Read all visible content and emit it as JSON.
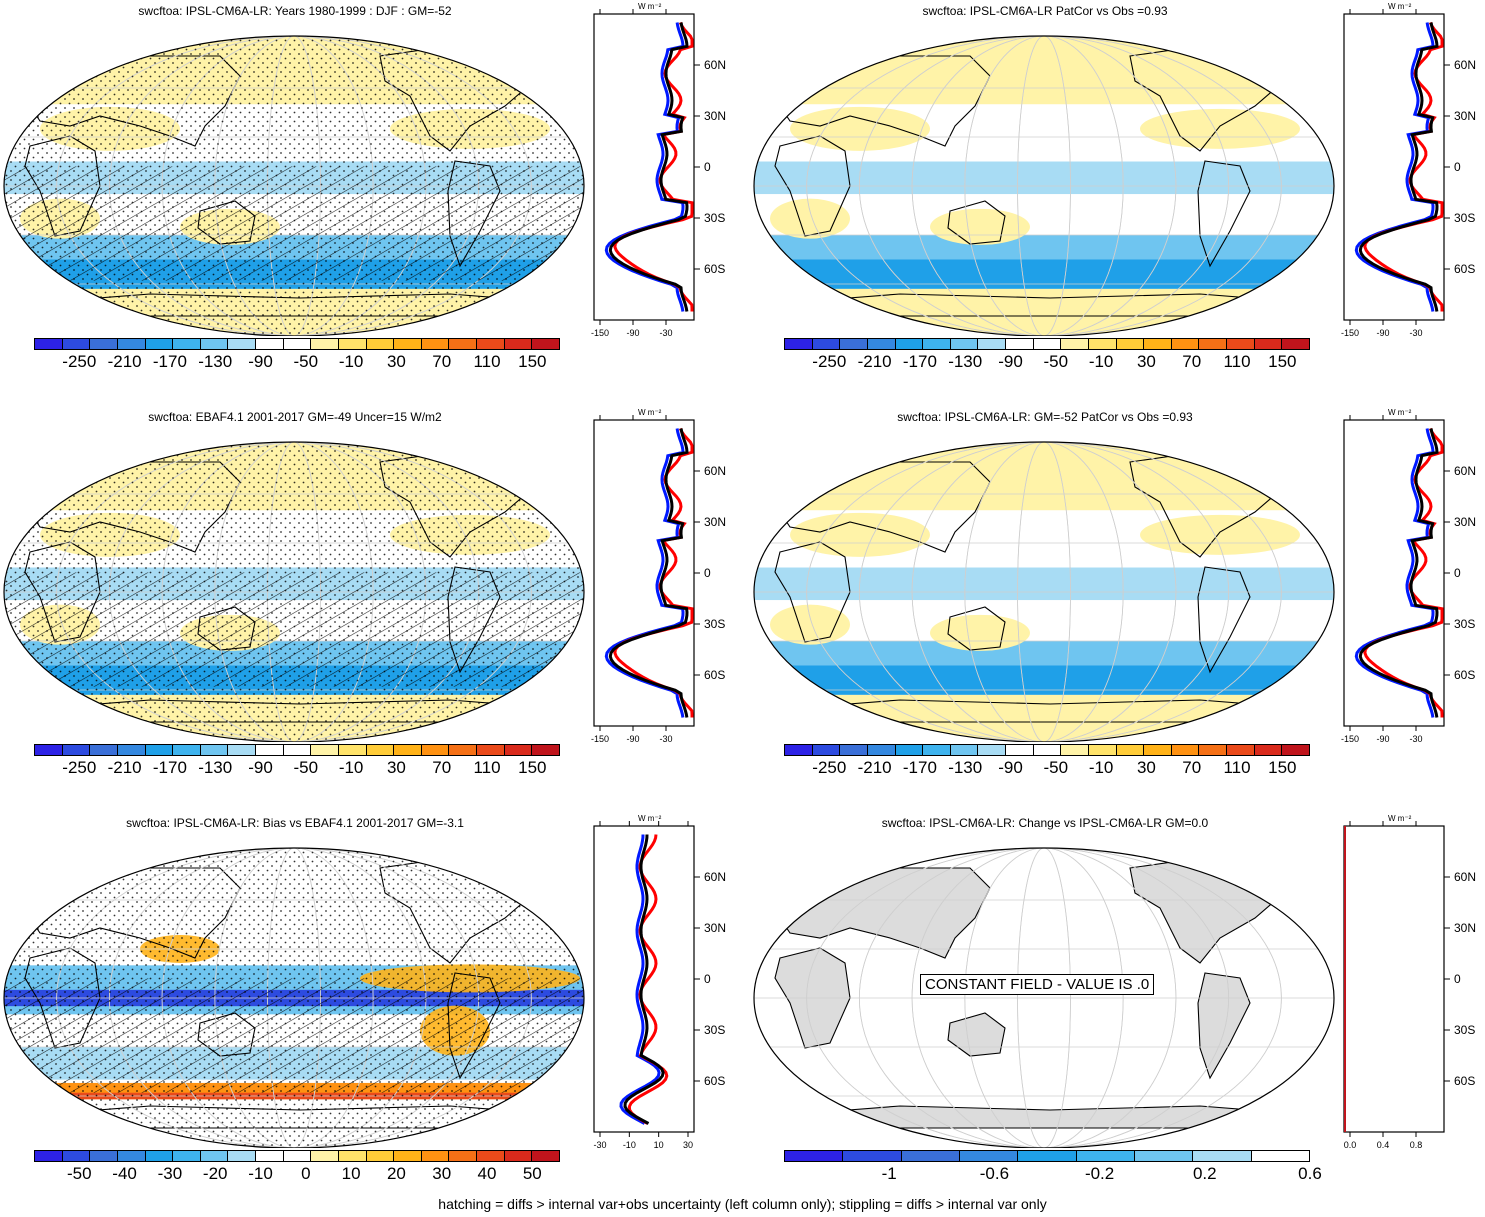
{
  "footnote": "hatching = diffs > internal var+obs uncertainty (left column only); stippling = diffs > internal var only",
  "units_label": "W m⁻²",
  "lat_labels": [
    "60N",
    "30N",
    "0",
    "30S",
    "60S"
  ],
  "palettes": {
    "full": [
      "#2d22e6",
      "#2d4be0",
      "#3a6fd8",
      "#3488e0",
      "#1fa0e8",
      "#3eb3ee",
      "#6fc5f0",
      "#a8dcf4",
      "#ffffff",
      "#ffffff",
      "#fff3a8",
      "#ffe36a",
      "#ffcc38",
      "#ffb218",
      "#ff9212",
      "#f57016",
      "#ea4a1a",
      "#d92a1c",
      "#c0141c"
    ],
    "bias": [
      "#2d22e6",
      "#2d4be0",
      "#3a6fd8",
      "#3488e0",
      "#1fa0e8",
      "#3eb3ee",
      "#6fc5f0",
      "#a8dcf4",
      "#ffffff",
      "#ffffff",
      "#fff3a8",
      "#ffe36a",
      "#ffcc38",
      "#ffb218",
      "#ff9212",
      "#f57016",
      "#ea4a1a",
      "#d92a1c",
      "#c0141c"
    ],
    "change": [
      "#2d22e6",
      "#2d4be0",
      "#3a6fd8",
      "#3488e0",
      "#1fa0e8",
      "#3eb3ee",
      "#6fc5f0",
      "#a8dcf4",
      "#ffffff"
    ]
  },
  "panels": [
    {
      "title": "swcftoa: IPSL-CM6A-LR: Years 1980-1999 : DJF : GM=-52",
      "colorbar_labels": [
        "-250",
        "-210",
        "-170",
        "-130",
        "-90",
        "-50",
        "-10",
        "30",
        "70",
        "110",
        "150"
      ],
      "zonal_ticks": [
        "-150",
        "-90",
        "-30"
      ],
      "palette": "full",
      "hatching": true
    },
    {
      "title": "swcftoa: IPSL-CM6A-LR PatCor vs Obs =0.93",
      "colorbar_labels": [
        "-250",
        "-210",
        "-170",
        "-130",
        "-90",
        "-50",
        "-10",
        "30",
        "70",
        "110",
        "150"
      ],
      "zonal_ticks": [
        "-150",
        "-90",
        "-30"
      ],
      "palette": "full",
      "hatching": false
    },
    {
      "title": "swcftoa: EBAF4.1 2001-2017 GM=-49 Uncer=15 W/m2",
      "colorbar_labels": [
        "-250",
        "-210",
        "-170",
        "-130",
        "-90",
        "-50",
        "-10",
        "30",
        "70",
        "110",
        "150"
      ],
      "zonal_ticks": [
        "-150",
        "-90",
        "-30"
      ],
      "palette": "full",
      "hatching": true
    },
    {
      "title": "swcftoa: IPSL-CM6A-LR: GM=-52 PatCor vs Obs =0.93",
      "colorbar_labels": [
        "-250",
        "-210",
        "-170",
        "-130",
        "-90",
        "-50",
        "-10",
        "30",
        "70",
        "110",
        "150"
      ],
      "zonal_ticks": [
        "-150",
        "-90",
        "-30"
      ],
      "palette": "full",
      "hatching": false
    },
    {
      "title": "swcftoa: IPSL-CM6A-LR: Bias vs EBAF4.1 2001-2017 GM=-3.1",
      "colorbar_labels": [
        "-50",
        "-40",
        "-30",
        "-20",
        "-10",
        "0",
        "10",
        "20",
        "30",
        "40",
        "50"
      ],
      "zonal_ticks": [
        "-30",
        "-10",
        "10",
        "30"
      ],
      "palette": "bias",
      "hatching": true
    },
    {
      "title": "swcftoa: IPSL-CM6A-LR: Change vs IPSL-CM6A-LR GM=0.0",
      "colorbar_labels": [
        "-1",
        "-0.6",
        "-0.2",
        "0.2",
        "0.6"
      ],
      "zonal_ticks": [
        "0.0",
        "0.4",
        "0.8"
      ],
      "palette": "change",
      "hatching": false,
      "constant_message": "CONSTANT FIELD - VALUE IS .0"
    }
  ]
}
